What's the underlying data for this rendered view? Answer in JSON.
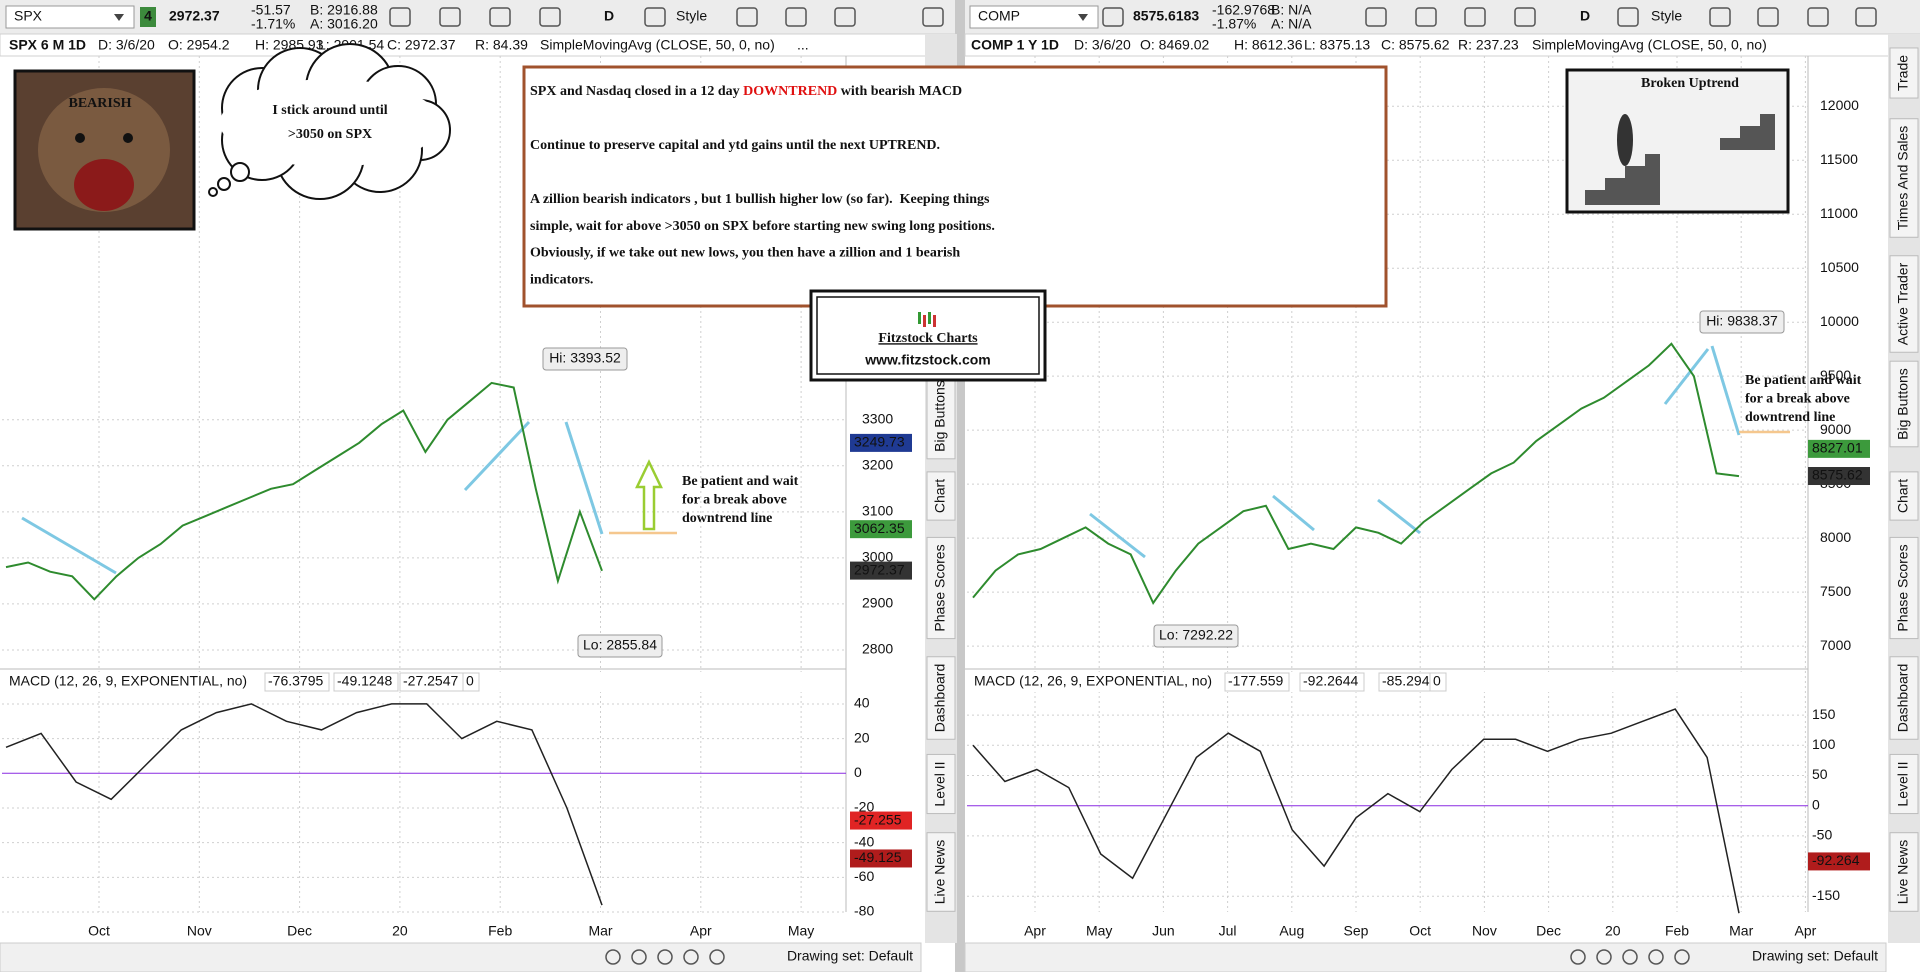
{
  "panels": [
    {
      "toolbar": {
        "symbol": "SPX",
        "link": "4",
        "last": "2972.37",
        "change": "-51.57",
        "change_pct": "-1.71%",
        "bid": "B: 2916.88",
        "ask": "A: 3016.20",
        "aggregation": "D",
        "style": "Style"
      },
      "info": [
        "SPX 6 M 1D",
        "D: 3/6/20",
        "O: 2954.2",
        "H: 2985.93",
        "L: 2901.54",
        "C: 2972.37",
        "R: 84.39",
        "SimpleMovingAvg (CLOSE, 50, 0, no)",
        "..."
      ],
      "chart_data": {
        "type": "line",
        "months": [
          "Oct",
          "Nov",
          "Dec",
          "20",
          "Feb",
          "Mar",
          "Apr",
          "May"
        ],
        "values": [
          2980,
          2990,
          2970,
          2960,
          2910,
          2960,
          3000,
          3030,
          3070,
          3090,
          3110,
          3130,
          3150,
          3160,
          3190,
          3220,
          3250,
          3290,
          3320,
          3230,
          3300,
          3340,
          3380,
          3370,
          3150,
          2950,
          3100,
          2972
        ],
        "color": "#2e8b2e",
        "ylim": [
          2763,
          4090
        ],
        "yticks": [
          2800,
          2900,
          3000,
          3100,
          3200,
          3300
        ],
        "grid": true,
        "price_badges": [
          {
            "value": 3249.73,
            "color": "#1f3a93"
          },
          {
            "value": 3062.35,
            "color": "#3c9a3c"
          },
          {
            "value": 2972.37,
            "color": "#333333"
          }
        ],
        "high_label": "Hi: 3393.52",
        "low_label": "Lo: 2855.84",
        "note": [
          "Be patient and wait",
          "for a break above",
          "downtrend line"
        ]
      },
      "macd": {
        "type": "line",
        "title": "MACD (12, 26, 9, EXPONENTIAL, no)",
        "readouts": [
          {
            "value": -76.3795,
            "color": "#111111"
          },
          {
            "value": -49.1248,
            "color": "#c02020"
          },
          {
            "value": -27.2547,
            "color": "#c02020"
          },
          {
            "value": 0,
            "color": "#8a2be2"
          }
        ],
        "values": [
          15,
          23,
          -5,
          -15,
          5,
          25,
          35,
          40,
          30,
          25,
          35,
          40,
          40,
          20,
          30,
          25,
          -20,
          -76
        ],
        "color": "#222222",
        "ylim": [
          -80,
          59
        ],
        "yticks": [
          40,
          20,
          0,
          -20,
          -40,
          -60,
          -80
        ],
        "badges": [
          {
            "value": -27.255,
            "color": "#e02424"
          },
          {
            "value": -49.125,
            "color": "#b01c1c"
          }
        ]
      },
      "tabs": [
        "Big Buttons",
        "Chart",
        "Phase Scores",
        "Dashboard",
        "Level II",
        "Live News"
      ],
      "footer": "Drawing set: Default"
    },
    {
      "toolbar": {
        "symbol": "COMP",
        "last": "8575.6183",
        "change": "-162.9768",
        "change_pct": "-1.87%",
        "bid": "B: N/A",
        "ask": "A: N/A",
        "aggregation": "D",
        "style": "Style"
      },
      "info": [
        "COMP 1 Y 1D",
        "D: 3/6/20",
        "O: 8469.02",
        "H: 8612.36",
        "L: 8375.13",
        "C: 8575.62",
        "R: 237.23",
        "SimpleMovingAvg (CLOSE, 50, 0, no)"
      ],
      "chart_data": {
        "type": "line",
        "months": [
          "Apr",
          "May",
          "Jun",
          "Jul",
          "Aug",
          "Sep",
          "Oct",
          "Nov",
          "Dec",
          "20",
          "Feb",
          "Mar",
          "Apr"
        ],
        "values": [
          7450,
          7700,
          7850,
          7900,
          8000,
          8100,
          7950,
          7850,
          7400,
          7700,
          7950,
          8100,
          8250,
          8300,
          7900,
          7950,
          7900,
          8100,
          8050,
          7950,
          8150,
          8300,
          8450,
          8600,
          8700,
          8900,
          9050,
          9200,
          9300,
          9450,
          9600,
          9800,
          9500,
          8600,
          8575
        ],
        "color": "#2e8b2e",
        "ylim": [
          6807,
          12465
        ],
        "yticks": [
          7000,
          7500,
          8000,
          8500,
          9000,
          9500,
          10000,
          10500,
          11000,
          11500,
          12000
        ],
        "grid": true,
        "price_badges": [
          {
            "value": 8827.01,
            "color": "#3c9a3c"
          },
          {
            "value": 8575.62,
            "color": "#333333"
          }
        ],
        "high_label": "Hi: 9838.37",
        "low_label": "Lo: 7292.22",
        "note": [
          "Be patient and wait",
          "for a break above",
          "downtrend line"
        ]
      },
      "macd": {
        "type": "line",
        "title": "MACD (12, 26, 9, EXPONENTIAL, no)",
        "readouts": [
          {
            "value": -177.559,
            "color": "#111111"
          },
          {
            "value": -92.2644,
            "color": "#c02020"
          },
          {
            "value": -85.2941,
            "color": "#c02020"
          },
          {
            "value": 0,
            "color": "#8a2be2"
          }
        ],
        "values": [
          100,
          40,
          60,
          30,
          -80,
          -120,
          -20,
          80,
          120,
          90,
          -40,
          -100,
          -20,
          20,
          -10,
          60,
          110,
          110,
          90,
          110,
          120,
          140,
          160,
          80,
          -178
        ],
        "color": "#222222",
        "ylim": [
          -176,
          223
        ],
        "yticks": [
          150,
          100,
          50,
          0,
          -50,
          -150
        ],
        "badges": [
          {
            "value": -92.264,
            "color": "#b01c1c"
          }
        ]
      },
      "tabs": [
        "Trade",
        "Times And Sales",
        "Active Trader",
        "Big Buttons",
        "Chart",
        "Phase Scores",
        "Dashboard",
        "Level II",
        "Live News"
      ],
      "footer": "Drawing set: Default"
    }
  ],
  "bear": {
    "label": "BEARISH",
    "thought": [
      "I stick around until",
      ">3050 on SPX"
    ]
  },
  "commentary": {
    "headline": [
      "SPX and Nasdaq closed in a 12 day ",
      "DOWNTREND",
      " with bearish MACD"
    ],
    "line2": "Continue to preserve capital and ytd gains until the next UPTREND.",
    "paragraph": [
      "A zillion bearish indicators , but 1 bullish higher low (so far).  Keeping things",
      "simple, wait for above >3050 on SPX before starting new swing long positions.",
      "Obviously, if we take out new lows, you then have a zillion and 1 bearish",
      "indicators."
    ]
  },
  "logo": {
    "name": "Fitzstock Charts",
    "url": "www.fitzstock.com"
  },
  "image_caption": "Broken Uptrend"
}
